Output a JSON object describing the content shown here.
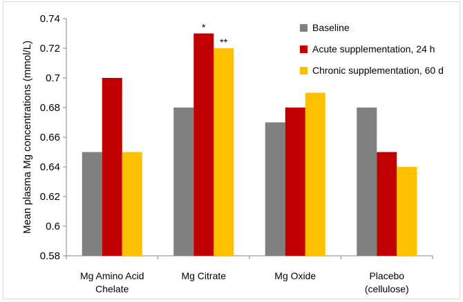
{
  "chart_data": {
    "type": "bar",
    "title": "",
    "xlabel": "",
    "ylabel": "Mean plasma Mg concentrations (mmol/L)",
    "ylim": [
      0.58,
      0.74
    ],
    "yticks": [
      "0.58",
      "0.6",
      "0.62",
      "0.64",
      "0.66",
      "0.68",
      "0.7",
      "0.72",
      "0.74"
    ],
    "grid": false,
    "legend_position": "top-right",
    "categories": [
      [
        "Mg Amino Acid",
        "Chelate"
      ],
      [
        "Mg Citrate"
      ],
      [
        "Mg Oxide"
      ],
      [
        "Placebo",
        "(cellulose)"
      ]
    ],
    "series": [
      {
        "name": "Baseline",
        "color": "#808080",
        "values": [
          0.65,
          0.68,
          0.67,
          0.68
        ]
      },
      {
        "name": "Acute supplementation, 24 h",
        "color": "#c00000",
        "values": [
          0.7,
          0.73,
          0.68,
          0.65
        ]
      },
      {
        "name": "Chronic supplementation, 60 d",
        "color": "#ffc000",
        "values": [
          0.65,
          0.72,
          0.69,
          0.64
        ]
      }
    ],
    "annotations": [
      {
        "category": 1,
        "series": 1,
        "text": "*"
      },
      {
        "category": 1,
        "series": 2,
        "text": "**"
      }
    ]
  }
}
